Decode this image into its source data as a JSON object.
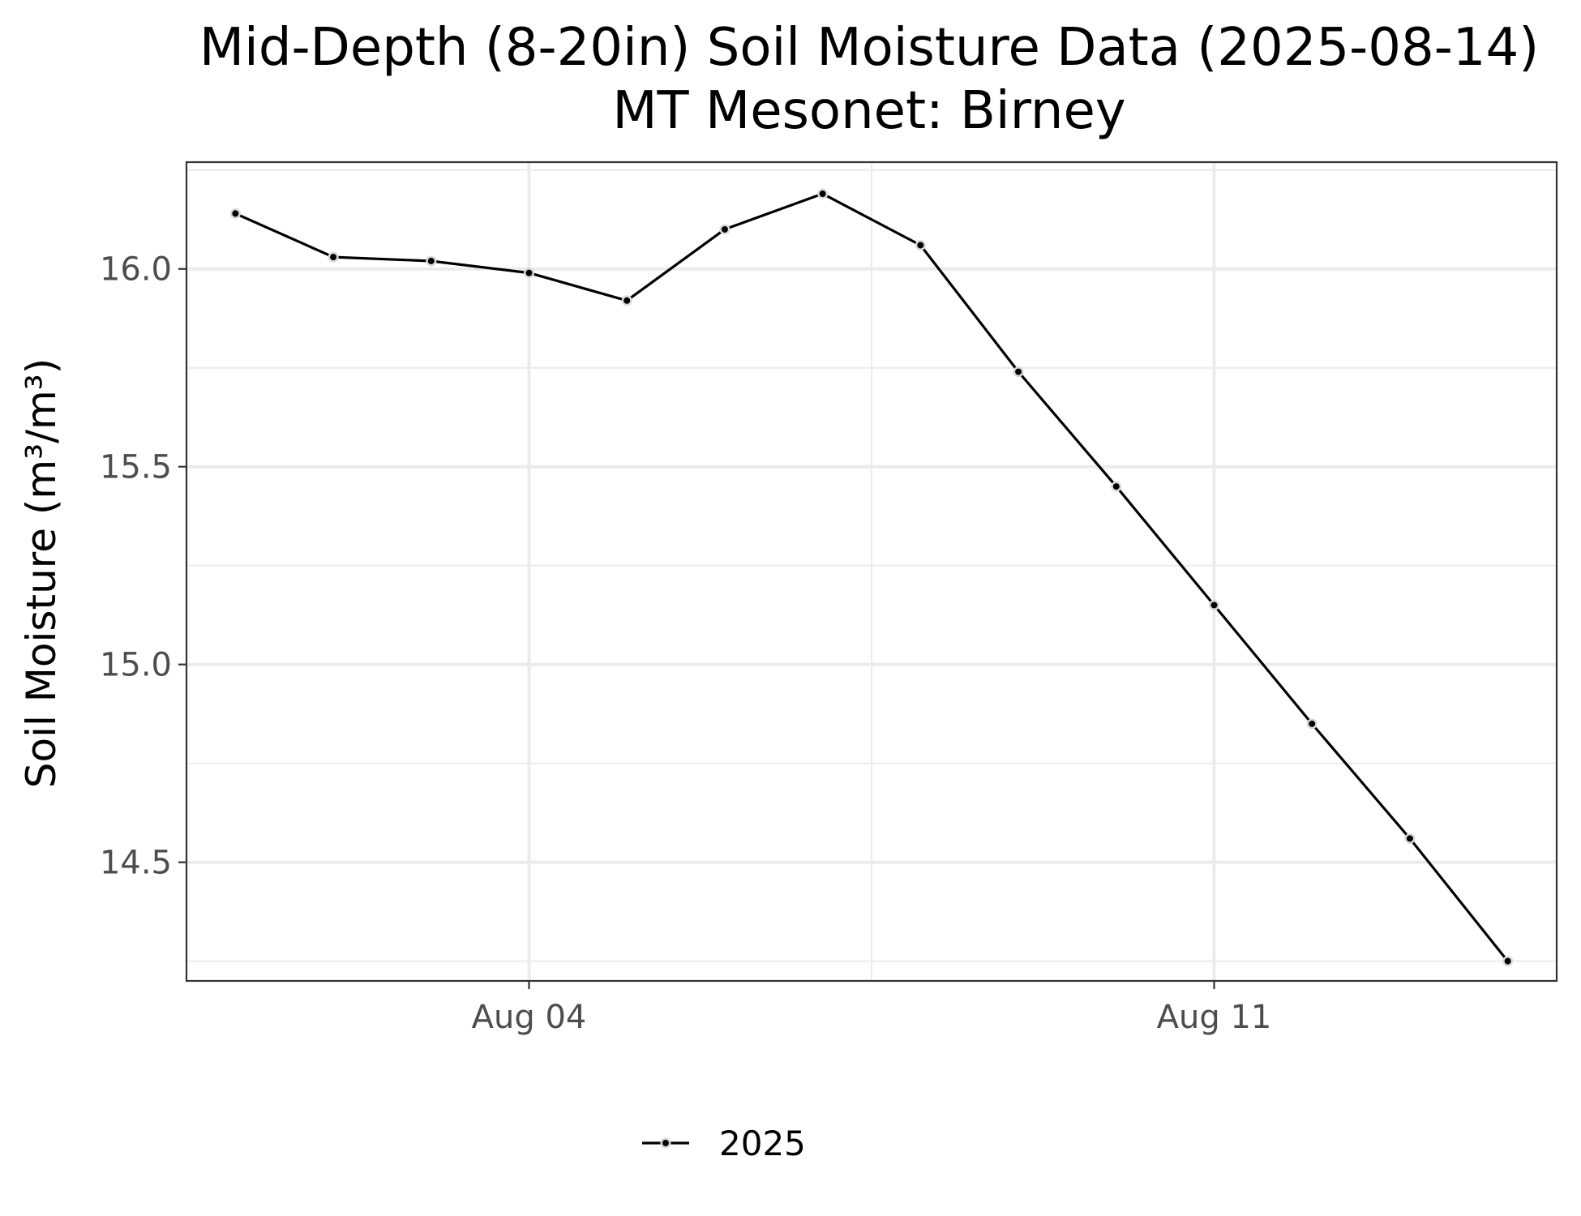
{
  "chart_data": {
    "type": "line",
    "title": "Mid-Depth (8-20in) Soil Moisture Data (2025-08-14)",
    "subtitle": "MT Mesonet: Birney",
    "xlabel": "",
    "ylabel": "Soil Moisture (m³/m³)",
    "x": [
      "2025-08-01",
      "2025-08-02",
      "2025-08-03",
      "2025-08-04",
      "2025-08-05",
      "2025-08-06",
      "2025-08-07",
      "2025-08-08",
      "2025-08-09",
      "2025-08-10",
      "2025-08-11",
      "2025-08-12",
      "2025-08-13",
      "2025-08-14"
    ],
    "x_ticks": [
      {
        "date": "2025-08-04",
        "label": "Aug 04"
      },
      {
        "date": "2025-08-11",
        "label": "Aug 11"
      }
    ],
    "y_ticks": [
      14.5,
      15.0,
      15.5,
      16.0
    ],
    "y_tick_labels": [
      "14.5",
      "15.0",
      "15.5",
      "16.0"
    ],
    "ylim": [
      14.2,
      16.27
    ],
    "xlim": [
      "2025-07-31T12:00",
      "2025-08-14T12:00"
    ],
    "grid": true,
    "legend_position": "bottom",
    "series": [
      {
        "name": "2025",
        "color": "#000000",
        "values": [
          16.14,
          16.03,
          16.02,
          15.99,
          15.92,
          16.1,
          16.19,
          16.06,
          15.74,
          15.45,
          15.15,
          14.85,
          14.56,
          14.25
        ]
      }
    ]
  }
}
